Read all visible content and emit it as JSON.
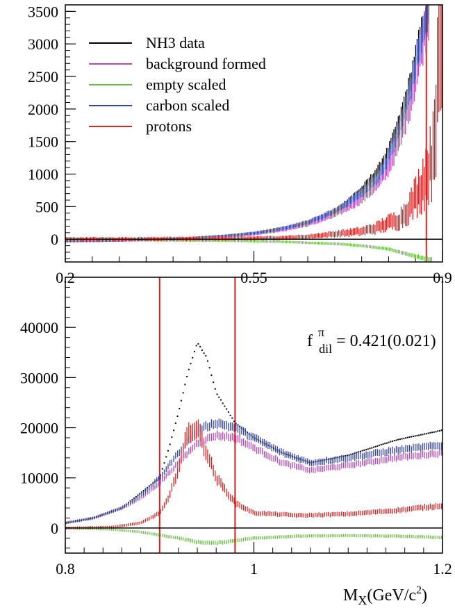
{
  "chart_data": [
    {
      "type": "line",
      "title": "",
      "xlabel": "",
      "ylabel": "",
      "xlim": [
        0.2,
        0.9
      ],
      "ylim": [
        -350,
        3600
      ],
      "x_ticks": [
        "0.2",
        "0.55",
        "0.9"
      ],
      "x_tick_values": [
        0.2,
        0.55,
        0.9
      ],
      "y_ticks": [
        "0",
        "500",
        "1000",
        "1500",
        "2000",
        "2500",
        "3000",
        "3500"
      ],
      "y_tick_values": [
        0,
        500,
        1000,
        1500,
        2000,
        2500,
        3000,
        3500
      ],
      "zero_line": true,
      "cut_lines": [
        0.87
      ],
      "legend": {
        "placement": "top-left",
        "entries": [
          {
            "label": "NH3 data",
            "color": "#000000"
          },
          {
            "label": "background formed",
            "color": "#b848b8"
          },
          {
            "label": "empty scaled",
            "color": "#66c040"
          },
          {
            "label": "carbon scaled",
            "color": "#3344aa"
          },
          {
            "label": "protons",
            "color": "#e02020"
          }
        ]
      },
      "series": [
        {
          "name": "NH3 data",
          "color": "#000000",
          "x": [
            0.2,
            0.3,
            0.4,
            0.5,
            0.55,
            0.6,
            0.65,
            0.7,
            0.75,
            0.78,
            0.8,
            0.82,
            0.84,
            0.86,
            0.875
          ],
          "y": [
            -30,
            -20,
            0,
            50,
            90,
            150,
            250,
            420,
            750,
            1050,
            1350,
            1800,
            2400,
            3150,
            3600
          ]
        },
        {
          "name": "background formed",
          "color": "#b848b8",
          "x": [
            0.2,
            0.3,
            0.4,
            0.5,
            0.55,
            0.6,
            0.65,
            0.7,
            0.75,
            0.78,
            0.8,
            0.82,
            0.84,
            0.86,
            0.875
          ],
          "y": [
            -30,
            -20,
            0,
            40,
            80,
            140,
            230,
            380,
            620,
            850,
            1100,
            1500,
            2100,
            2900,
            3500
          ]
        },
        {
          "name": "empty scaled",
          "color": "#66c040",
          "x": [
            0.2,
            0.3,
            0.4,
            0.5,
            0.6,
            0.7,
            0.75,
            0.8,
            0.83,
            0.86,
            0.88
          ],
          "y": [
            -10,
            -15,
            -20,
            -25,
            -40,
            -70,
            -100,
            -150,
            -220,
            -280,
            -320
          ]
        },
        {
          "name": "carbon scaled",
          "color": "#3344aa",
          "x": [
            0.2,
            0.3,
            0.4,
            0.5,
            0.55,
            0.6,
            0.65,
            0.7,
            0.75,
            0.78,
            0.8,
            0.82,
            0.84,
            0.86,
            0.875
          ],
          "y": [
            -30,
            -20,
            0,
            55,
            95,
            160,
            260,
            430,
            700,
            950,
            1250,
            1700,
            2300,
            3050,
            3550
          ]
        },
        {
          "name": "protons",
          "color": "#e02020",
          "x": [
            0.2,
            0.3,
            0.4,
            0.5,
            0.55,
            0.6,
            0.65,
            0.7,
            0.75,
            0.78,
            0.8,
            0.82,
            0.84,
            0.86,
            0.88,
            0.9
          ],
          "y": [
            0,
            0,
            5,
            10,
            15,
            20,
            40,
            80,
            120,
            180,
            250,
            300,
            500,
            800,
            1200,
            3200
          ]
        }
      ]
    },
    {
      "type": "line",
      "title": "",
      "xlabel": "M_X(GeV/c^2)",
      "ylabel": "",
      "xlim": [
        0.8,
        1.2
      ],
      "ylim": [
        -5000,
        50000
      ],
      "x_ticks": [
        "0.8",
        "1",
        "1.2"
      ],
      "x_tick_values": [
        0.8,
        1.0,
        1.2
      ],
      "y_ticks": [
        "0",
        "10000",
        "20000",
        "30000",
        "40000"
      ],
      "y_tick_values": [
        0,
        10000,
        20000,
        30000,
        40000
      ],
      "zero_line": true,
      "cut_lines": [
        0.9,
        0.98
      ],
      "annotation": {
        "base": "f",
        "sup": "π",
        "sub": "dil",
        "value": " = 0.421(0.021)"
      },
      "series": [
        {
          "name": "NH3 data",
          "color": "#000000",
          "x": [
            0.8,
            0.83,
            0.86,
            0.88,
            0.9,
            0.91,
            0.92,
            0.93,
            0.94,
            0.95,
            0.96,
            0.98,
            1.0,
            1.03,
            1.06,
            1.1,
            1.15,
            1.2
          ],
          "y": [
            1000,
            2000,
            4000,
            7000,
            10000,
            16000,
            23000,
            31000,
            37000,
            34000,
            27000,
            21000,
            18000,
            15000,
            13000,
            14500,
            17500,
            19500
          ]
        },
        {
          "name": "background formed",
          "color": "#b848b8",
          "x": [
            0.8,
            0.83,
            0.86,
            0.88,
            0.9,
            0.92,
            0.94,
            0.96,
            0.98,
            1.0,
            1.03,
            1.06,
            1.1,
            1.15,
            1.2
          ],
          "y": [
            1000,
            2000,
            4000,
            6000,
            9000,
            13000,
            17000,
            18500,
            18000,
            16000,
            13000,
            11500,
            12500,
            14000,
            15000
          ]
        },
        {
          "name": "empty scaled",
          "color": "#66c040",
          "x": [
            0.8,
            0.85,
            0.88,
            0.9,
            0.92,
            0.94,
            0.96,
            0.98,
            1.0,
            1.05,
            1.1,
            1.15,
            1.2
          ],
          "y": [
            0,
            -300,
            -800,
            -1400,
            -2000,
            -2800,
            -3000,
            -2500,
            -2000,
            -1600,
            -1500,
            -1600,
            -1900
          ]
        },
        {
          "name": "carbon scaled",
          "color": "#3344aa",
          "x": [
            0.8,
            0.83,
            0.86,
            0.88,
            0.9,
            0.92,
            0.94,
            0.96,
            0.98,
            1.0,
            1.03,
            1.06,
            1.1,
            1.15,
            1.2
          ],
          "y": [
            1000,
            2000,
            4000,
            6500,
            10000,
            15000,
            19500,
            21000,
            20000,
            18000,
            15000,
            13000,
            14000,
            15500,
            16500
          ]
        },
        {
          "name": "protons",
          "color": "#e02020",
          "x": [
            0.8,
            0.85,
            0.88,
            0.9,
            0.91,
            0.92,
            0.93,
            0.94,
            0.95,
            0.96,
            0.98,
            1.0,
            1.05,
            1.1,
            1.15,
            1.2
          ],
          "y": [
            0,
            200,
            1000,
            3000,
            6000,
            12000,
            19000,
            20000,
            15000,
            10000,
            5000,
            3000,
            2500,
            2800,
            3500,
            4500
          ]
        }
      ]
    }
  ]
}
